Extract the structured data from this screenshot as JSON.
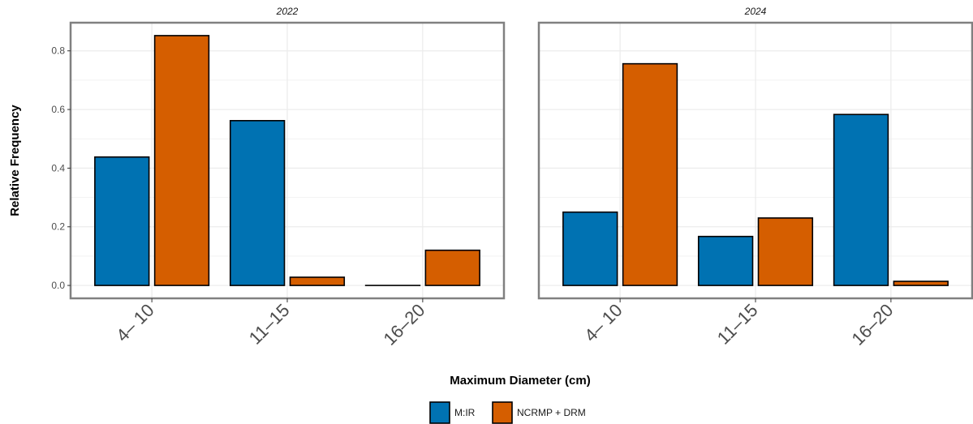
{
  "chart_data": {
    "type": "bar",
    "facets": [
      {
        "title": "2022",
        "categories": [
          "4– 10",
          "11–15",
          "16–20"
        ],
        "series": [
          {
            "name": "M:IR",
            "values": [
              0.438,
              0.562,
              0.0
            ]
          },
          {
            "name": "NCRMP + DRM",
            "values": [
              0.852,
              0.028,
              0.12
            ]
          }
        ]
      },
      {
        "title": "2024",
        "categories": [
          "4– 10",
          "11–15",
          "16–20"
        ],
        "series": [
          {
            "name": "M:IR",
            "values": [
              0.25,
              0.167,
              0.583
            ]
          },
          {
            "name": "NCRMP + DRM",
            "values": [
              0.756,
              0.23,
              0.014
            ]
          }
        ]
      }
    ],
    "xlabel": "Maximum Diameter (cm)",
    "ylabel": "Relative Frequency",
    "ylim": [
      -0.044,
      0.896
    ],
    "yticks": [
      "0.0",
      "0.2",
      "0.4",
      "0.6",
      "0.8"
    ],
    "grid": true,
    "legend": {
      "position": "bottom",
      "entries": [
        {
          "name": "M:IR",
          "color": "#0072B2"
        },
        {
          "name": "NCRMP + DRM",
          "color": "#D55E00"
        }
      ]
    }
  }
}
